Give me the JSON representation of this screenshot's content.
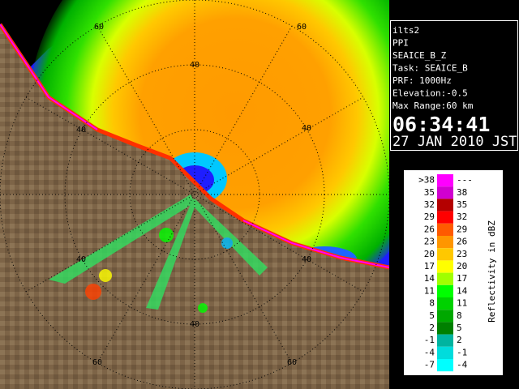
{
  "radar": {
    "ring_labels": [
      "60",
      "60",
      "40",
      "40",
      "40",
      "40",
      "40",
      "40",
      "60",
      "60"
    ]
  },
  "info": {
    "lines": [
      "ilts2",
      "PPI",
      "SEAICE_B_Z",
      "Task: SEAICE_B",
      "PRF: 1000Hz",
      "Elevation:-0.5",
      "Max Range:60 km"
    ],
    "time": "06:34:41",
    "date": "27 JAN 2010 JST"
  },
  "legend": {
    "title": "Reflectivity in dBZ",
    "rows": [
      {
        "low": ">38",
        "high": "---",
        "color": "#ff00ff"
      },
      {
        "low": "35",
        "high": "38",
        "color": "#d000d0"
      },
      {
        "low": "32",
        "high": "35",
        "color": "#b40000"
      },
      {
        "low": "29",
        "high": "32",
        "color": "#ff0000"
      },
      {
        "low": "26",
        "high": "29",
        "color": "#ff5a00"
      },
      {
        "low": "23",
        "high": "26",
        "color": "#ff9600"
      },
      {
        "low": "20",
        "high": "23",
        "color": "#ffc800"
      },
      {
        "low": "17",
        "high": "20",
        "color": "#ffff00"
      },
      {
        "low": "14",
        "high": "17",
        "color": "#a0ff00"
      },
      {
        "low": "11",
        "high": "14",
        "color": "#00ff00"
      },
      {
        "low": "8",
        "high": "11",
        "color": "#00d200"
      },
      {
        "low": "5",
        "high": "8",
        "color": "#00a800"
      },
      {
        "low": "2",
        "high": "5",
        "color": "#008000"
      },
      {
        "low": "-1",
        "high": "2",
        "color": "#00b4a0"
      },
      {
        "low": "-4",
        "high": "-1",
        "color": "#00dcdc"
      },
      {
        "low": "-7",
        "high": "-4",
        "color": "#00ffff"
      }
    ]
  }
}
